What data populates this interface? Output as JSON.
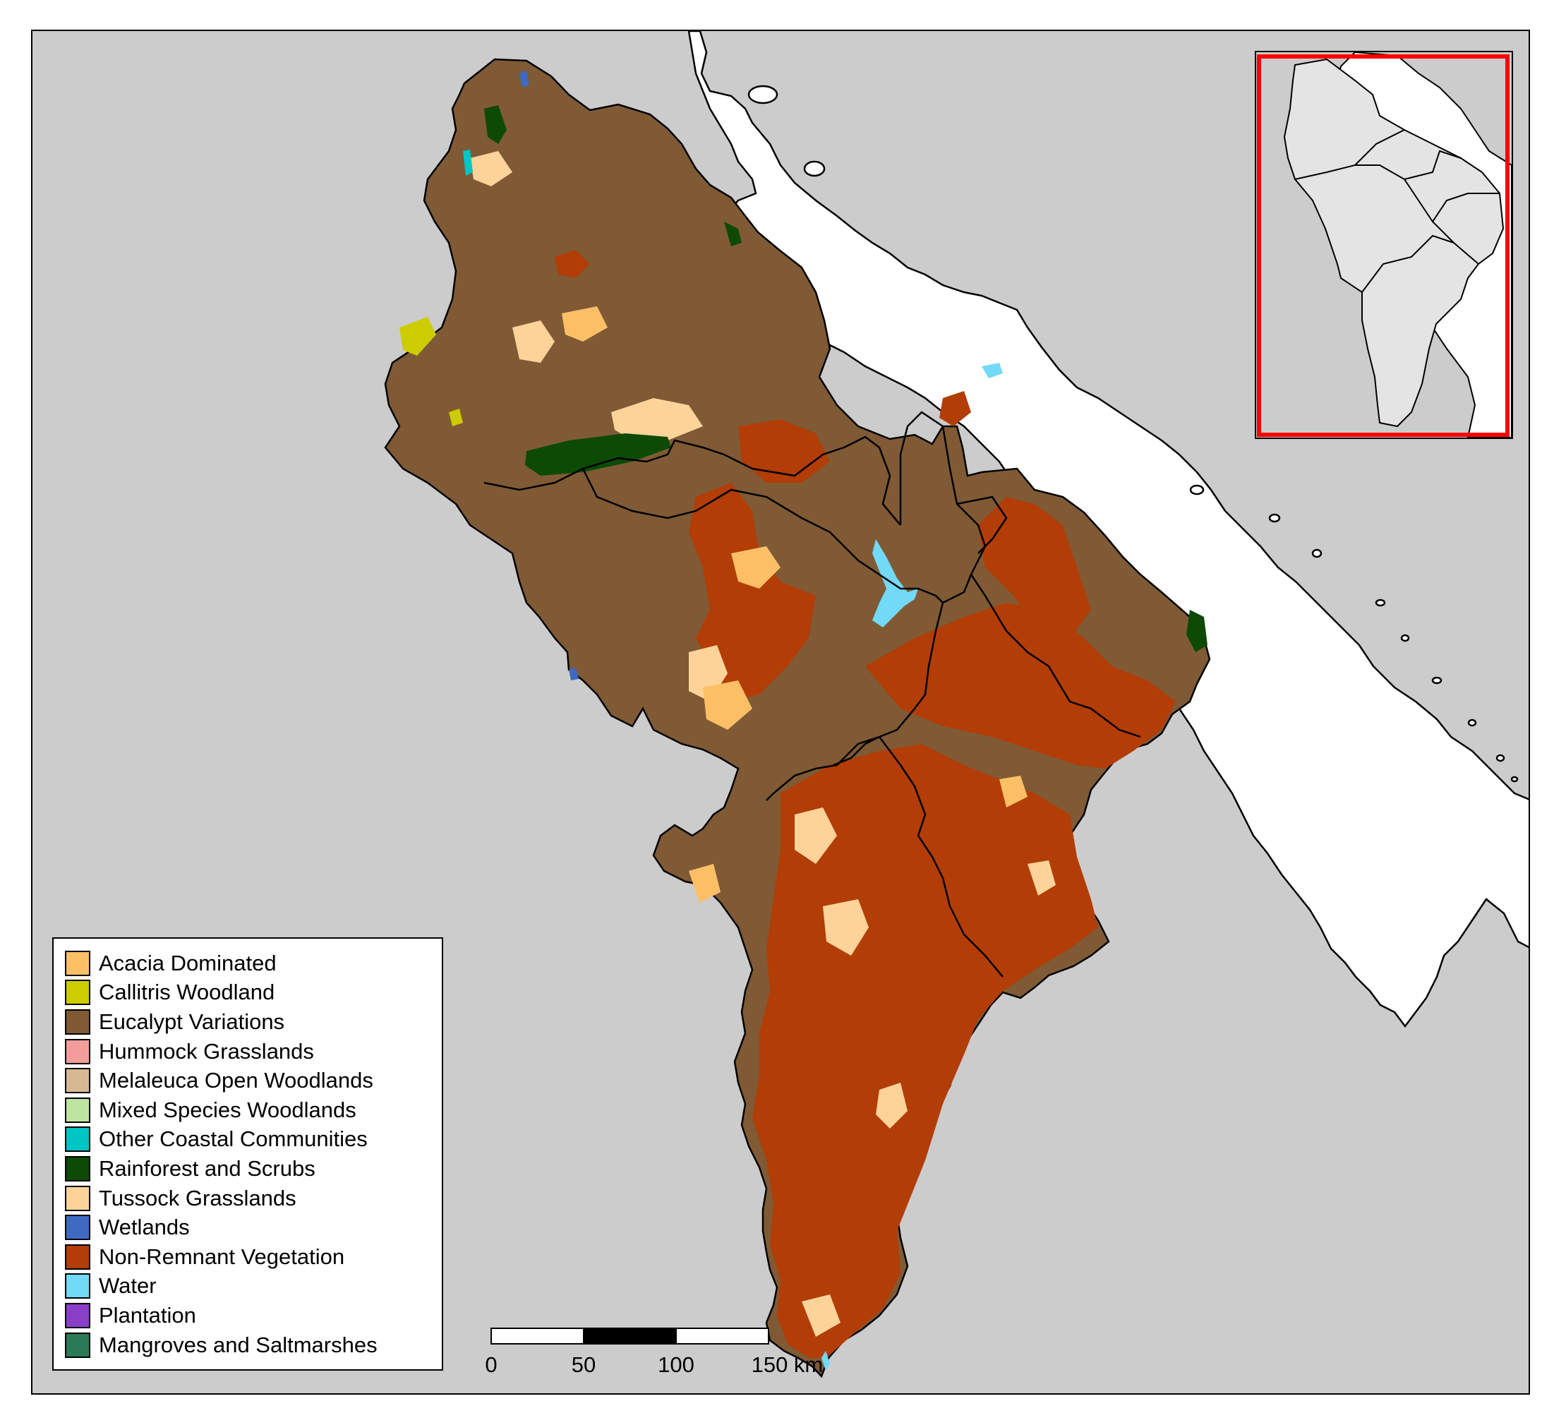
{
  "map": {
    "colors": {
      "background": "#cccccc",
      "land": "#ffffff",
      "eucalypt": "#7f5a35",
      "nonremnant": "#b23d06",
      "tussock": "#fdd39a",
      "acacia": "#fdbf66",
      "rainforest": "#0c4a05",
      "water": "#72d9f7",
      "wetlands": "#3e6ac2",
      "callitris": "#cccc00"
    }
  },
  "legend": {
    "items": [
      {
        "label": "Acacia Dominated",
        "color": "#fdbf66"
      },
      {
        "label": "Callitris Woodland",
        "color": "#cccc00"
      },
      {
        "label": "Eucalypt Variations",
        "color": "#7f5a35"
      },
      {
        "label": "Hummock Grasslands",
        "color": "#f49c9c"
      },
      {
        "label": "Melaleuca Open Woodlands",
        "color": "#d6b893"
      },
      {
        "label": "Mixed Species Woodlands",
        "color": "#bde5a1"
      },
      {
        "label": "Other Coastal Communities",
        "color": "#00c5c5"
      },
      {
        "label": "Rainforest and Scrubs",
        "color": "#0c4a05"
      },
      {
        "label": "Tussock Grasslands",
        "color": "#fdd39a"
      },
      {
        "label": "Wetlands",
        "color": "#3e6ac2"
      },
      {
        "label": "Non-Remnant Vegetation",
        "color": "#b23d06"
      },
      {
        "label": "Water",
        "color": "#72d9f7"
      },
      {
        "label": "Plantation",
        "color": "#8a3fc9"
      },
      {
        "label": "Mangroves and Saltmarshes",
        "color": "#2a7a55"
      }
    ]
  },
  "scalebar": {
    "ticks": [
      "0",
      "50",
      "100",
      "150 km"
    ]
  },
  "inset": {
    "extent_color": "#ff0000",
    "region_color": "#e4e4e4"
  }
}
